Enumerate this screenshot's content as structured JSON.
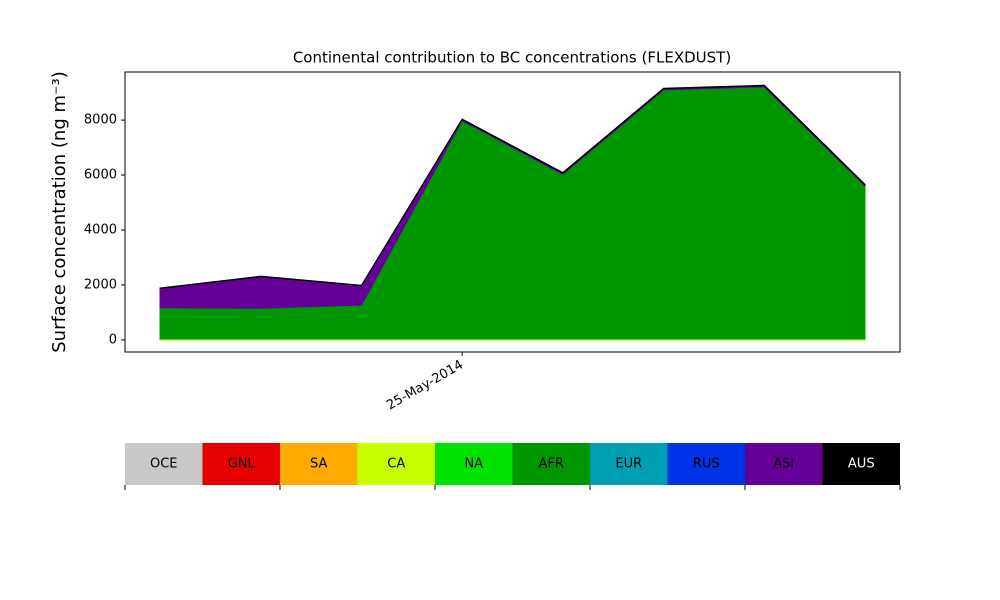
{
  "chart_data": {
    "type": "stackedarea",
    "title": "Continental contribution to BC concentrations (FLEXDUST)",
    "y_label": "Surface concentration (ng m⁻³)",
    "categories": [
      null,
      null,
      null,
      "25-May-2014",
      null,
      null,
      null,
      null
    ],
    "ylim": [
      -440,
      9750
    ],
    "yticks": [
      0,
      2000,
      4000,
      6000,
      8000
    ],
    "grid": false,
    "series": [
      {
        "name": "OCE",
        "color": "#c8c8c8",
        "values": [
          0,
          0,
          0,
          0,
          0,
          0,
          0,
          0
        ]
      },
      {
        "name": "GNL",
        "color": "#e60000",
        "values": [
          0,
          0,
          0,
          0,
          0,
          0,
          0,
          0
        ]
      },
      {
        "name": "SA",
        "color": "#ffaa00",
        "values": [
          0,
          0,
          0,
          0,
          0,
          0,
          0,
          0
        ]
      },
      {
        "name": "CA",
        "color": "#c8ff00",
        "values": [
          30,
          30,
          30,
          30,
          30,
          30,
          30,
          30
        ]
      },
      {
        "name": "NA",
        "color": "#00e100",
        "values": [
          10,
          10,
          10,
          10,
          10,
          10,
          10,
          10
        ]
      },
      {
        "name": "AFR",
        "color": "#009600",
        "values": [
          1130,
          1110,
          1230,
          7940,
          5990,
          9060,
          9170,
          5560
        ]
      },
      {
        "name": "EUR",
        "color": "#00a0b4",
        "values": [
          0,
          0,
          0,
          0,
          0,
          0,
          0,
          0
        ]
      },
      {
        "name": "RUS",
        "color": "#0032e6",
        "values": [
          0,
          0,
          0,
          0,
          0,
          0,
          0,
          0
        ]
      },
      {
        "name": "ASI",
        "color": "#640096",
        "values": [
          700,
          1150,
          700,
          40,
          40,
          40,
          40,
          40
        ]
      },
      {
        "name": "AUS",
        "color": "#000000",
        "values": [
          20,
          20,
          20,
          20,
          20,
          20,
          20,
          20
        ]
      }
    ]
  }
}
